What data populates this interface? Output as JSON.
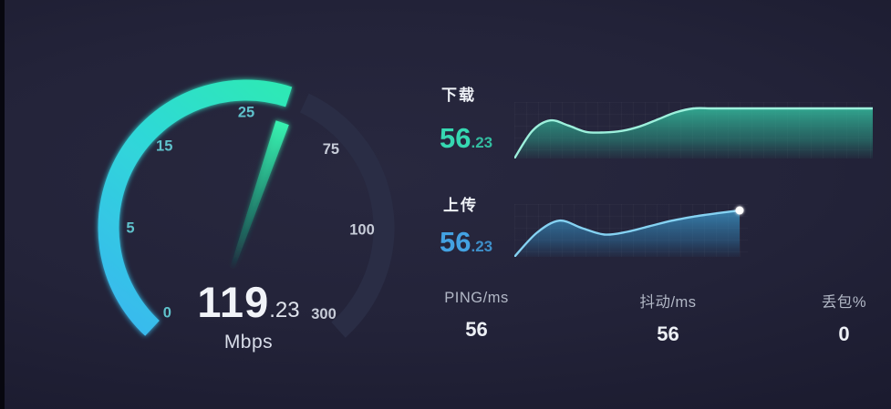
{
  "gauge": {
    "value_int": "119",
    "value_frac": ".23",
    "unit": "Mbps",
    "needle_angle_deg": 19,
    "arc_start_deg": -137,
    "arc_fill_end_deg": 18,
    "track_start_deg": 25,
    "track_end_deg": 138,
    "ticks": [
      {
        "label": "0",
        "angle": -137,
        "style": "teal"
      },
      {
        "label": "5",
        "angle": -90,
        "style": "teal"
      },
      {
        "label": "15",
        "angle": -45,
        "style": "teal"
      },
      {
        "label": "25",
        "angle": 0,
        "style": "teal"
      },
      {
        "label": "75",
        "angle": 47,
        "style": "gray"
      },
      {
        "label": "100",
        "angle": 91,
        "style": "gray"
      },
      {
        "label": "300",
        "angle": 138,
        "style": "gray"
      }
    ]
  },
  "download": {
    "label": "下载",
    "value_int": "56",
    "value_frac": ".23"
  },
  "upload": {
    "label": "上传",
    "value_int": "56",
    "value_frac": ".23"
  },
  "stats": [
    {
      "label": "PING/ms",
      "value": "56"
    },
    {
      "label": "抖动/ms",
      "value": "56"
    },
    {
      "label": "丢包%",
      "value": "0"
    }
  ],
  "colors": {
    "arc_gradient_from": "#3ab4f2",
    "arc_gradient_mid": "#2fd8d8",
    "arc_gradient_to": "#2df0a6",
    "arc_track": "#2a2d45",
    "needle_tip": "#38f2b0",
    "needle_tail": "#1a7a68",
    "download_accent": "#36d8b2",
    "download_line": "#9df0dc",
    "upload_accent": "#43a2e2",
    "upload_line": "#85d2f2",
    "end_dot": "#ffffff"
  },
  "chart_data": [
    {
      "type": "area",
      "series_name": "download_speed_over_time",
      "normalized": true,
      "values": [
        0,
        0.55,
        0.76,
        0.66,
        0.53,
        0.52,
        0.55,
        0.64,
        0.78,
        0.92,
        1.0,
        1.0,
        1.0,
        1.0,
        1.0,
        1.0,
        1.0,
        1.0,
        1.0,
        1.0,
        1.0
      ],
      "end_value": 56.23,
      "unit": "Mbps",
      "has_end_dot": false
    },
    {
      "type": "area",
      "series_name": "upload_speed_over_time",
      "normalized": true,
      "values": [
        0,
        0.52,
        0.78,
        0.62,
        0.48,
        0.54,
        0.66,
        0.78,
        0.87,
        0.94,
        1.0
      ],
      "end_value": 56.23,
      "unit": "Mbps",
      "has_end_dot": true
    }
  ]
}
